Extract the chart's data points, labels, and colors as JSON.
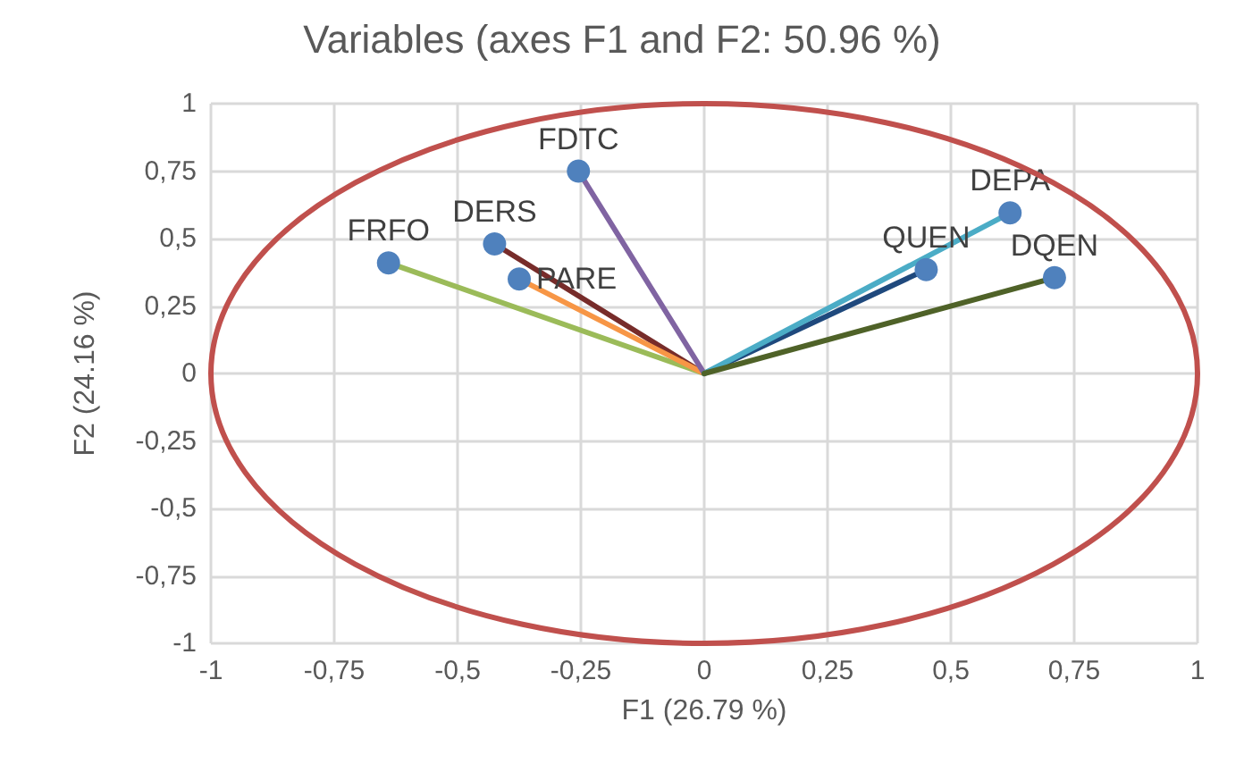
{
  "chart_data": {
    "type": "line",
    "title": "Variables (axes F1 and F2: 50.96 %)",
    "xlabel": "F1 (26.79 %)",
    "ylabel": "F2 (24.16 %)",
    "xlim": [
      -1,
      1
    ],
    "ylim": [
      -1,
      1
    ],
    "xticks": [
      -1,
      {
        "value": -0.75,
        "label": "-0,75"
      },
      {
        "value": -0.5,
        "label": "-0,5"
      },
      {
        "value": -0.25,
        "label": "-0,25"
      },
      0,
      {
        "value": 0.25,
        "label": "0,25"
      },
      {
        "value": 0.5,
        "label": "0,5"
      },
      {
        "value": 0.75,
        "label": "0,75"
      },
      1
    ],
    "yticks": [
      -1,
      {
        "value": -0.75,
        "label": "-0,75"
      },
      {
        "value": -0.5,
        "label": "-0,5"
      },
      {
        "value": -0.25,
        "label": "-0,25"
      },
      0,
      {
        "value": 0.25,
        "label": "0,25"
      },
      {
        "value": 0.5,
        "label": "0,5"
      },
      {
        "value": 0.75,
        "label": "0,75"
      },
      1
    ],
    "grid": true,
    "legend": false,
    "marker": "circle",
    "line_style": "solid",
    "series": [
      {
        "name": "FRFO",
        "color": "#9bbb59",
        "x": [
          0,
          -0.64
        ],
        "values": [
          0,
          0.41
        ]
      },
      {
        "name": "DERS",
        "color": "#772c2a",
        "x": [
          0,
          -0.425
        ],
        "values": [
          0,
          0.48
        ]
      },
      {
        "name": "PARE",
        "color": "#f79646",
        "x": [
          0,
          -0.375
        ],
        "values": [
          0,
          0.35
        ]
      },
      {
        "name": "FDTC",
        "color": "#8064a2",
        "x": [
          0,
          -0.255
        ],
        "values": [
          0,
          0.75
        ]
      },
      {
        "name": "QUEN",
        "color": "#1f497d",
        "x": [
          0,
          0.45
        ],
        "values": [
          0,
          0.385
        ]
      },
      {
        "name": "DEPA",
        "color": "#4bacc6",
        "x": [
          0,
          0.62
        ],
        "values": [
          0,
          0.595
        ]
      },
      {
        "name": "DQEN",
        "color": "#4f6228",
        "x": [
          0,
          0.71
        ],
        "values": [
          0,
          0.355
        ]
      }
    ]
  }
}
